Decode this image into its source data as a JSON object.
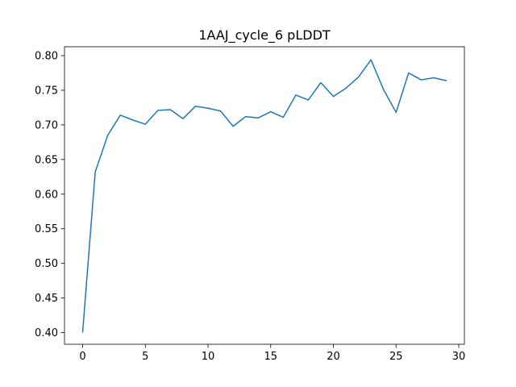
{
  "chart_data": {
    "type": "line",
    "title": "1AAJ_cycle_6 pLDDT",
    "xlabel": "",
    "ylabel": "",
    "xlim": [
      -1.45,
      30.45
    ],
    "ylim": [
      0.3832,
      0.8128
    ],
    "xticks": [
      0,
      5,
      10,
      15,
      20,
      25,
      30
    ],
    "yticks": [
      0.4,
      0.45,
      0.5,
      0.55,
      0.6,
      0.65,
      0.7,
      0.75,
      0.8
    ],
    "xtick_labels": [
      "0",
      "5",
      "10",
      "15",
      "20",
      "25",
      "30"
    ],
    "ytick_labels": [
      "0.40",
      "0.45",
      "0.50",
      "0.55",
      "0.60",
      "0.65",
      "0.70",
      "0.75",
      "0.80"
    ],
    "grid": false,
    "series": [
      {
        "color": "#1f77b4",
        "x": [
          0,
          1,
          2,
          3,
          4,
          5,
          6,
          7,
          8,
          9,
          10,
          11,
          12,
          13,
          14,
          15,
          16,
          17,
          18,
          19,
          20,
          21,
          22,
          23,
          24,
          25,
          26,
          27,
          28,
          29
        ],
        "y": [
          0.401,
          0.632,
          0.685,
          0.714,
          0.707,
          0.701,
          0.721,
          0.722,
          0.709,
          0.727,
          0.724,
          0.72,
          0.698,
          0.712,
          0.71,
          0.719,
          0.711,
          0.743,
          0.736,
          0.761,
          0.741,
          0.753,
          0.769,
          0.794,
          0.751,
          0.718,
          0.775,
          0.765,
          0.768,
          0.764
        ]
      }
    ]
  }
}
